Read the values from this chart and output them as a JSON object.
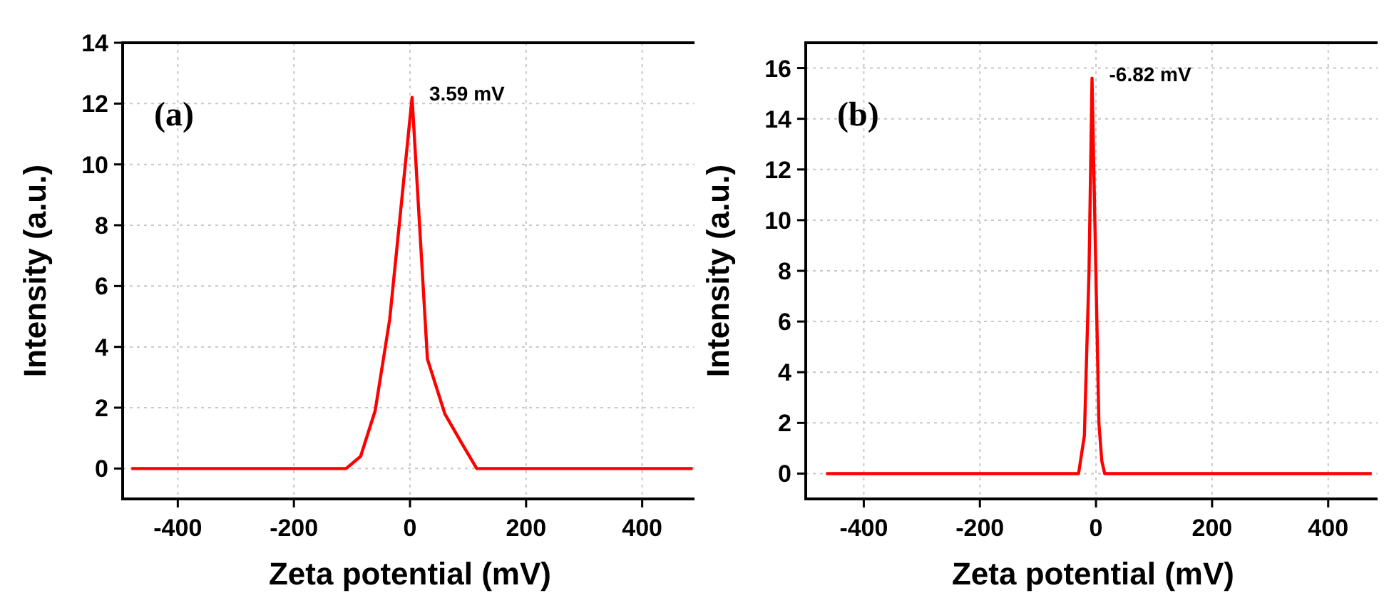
{
  "chart_data": [
    {
      "type": "line",
      "xlabel": "Zeta potential (mV)",
      "ylabel": "Intensity (a.u.)",
      "xlim": [
        -495,
        495
      ],
      "ylim": [
        -1,
        14
      ],
      "xticks": [
        -400,
        -200,
        0,
        200,
        400
      ],
      "yticks": [
        0,
        2,
        4,
        6,
        8,
        10,
        12,
        14
      ],
      "grid": true,
      "annotations": [
        "(a)",
        {
          "text": "3.59 mV",
          "x": 3.59,
          "y": 12.2
        }
      ],
      "series": [
        {
          "color": "#ff0000",
          "x": [
            -480,
            -110,
            -85,
            -60,
            -35,
            3.59,
            30,
            60,
            90,
            115,
            487
          ],
          "values": [
            0,
            0,
            0.4,
            1.9,
            4.9,
            12.2,
            3.6,
            1.8,
            0.8,
            0,
            0
          ]
        }
      ]
    },
    {
      "type": "line",
      "xlabel": "Zeta potential (mV)",
      "ylabel": "Intensity (a.u.)",
      "xlim": [
        -500,
        490
      ],
      "ylim": [
        -1,
        17
      ],
      "xticks": [
        -400,
        -200,
        0,
        200,
        400
      ],
      "yticks": [
        0,
        2,
        4,
        6,
        8,
        10,
        12,
        14,
        16
      ],
      "grid": true,
      "annotations": [
        "(b)",
        {
          "text": "-6.82 mV",
          "x": -6.82,
          "y": 15.6
        }
      ],
      "series": [
        {
          "color": "#ff0000",
          "x": [
            -465,
            -30,
            -20,
            -12,
            -6.82,
            -2,
            5,
            10,
            15,
            475
          ],
          "values": [
            0,
            0,
            1.5,
            8,
            15.6,
            10,
            2,
            0.5,
            0,
            0
          ]
        }
      ]
    }
  ]
}
